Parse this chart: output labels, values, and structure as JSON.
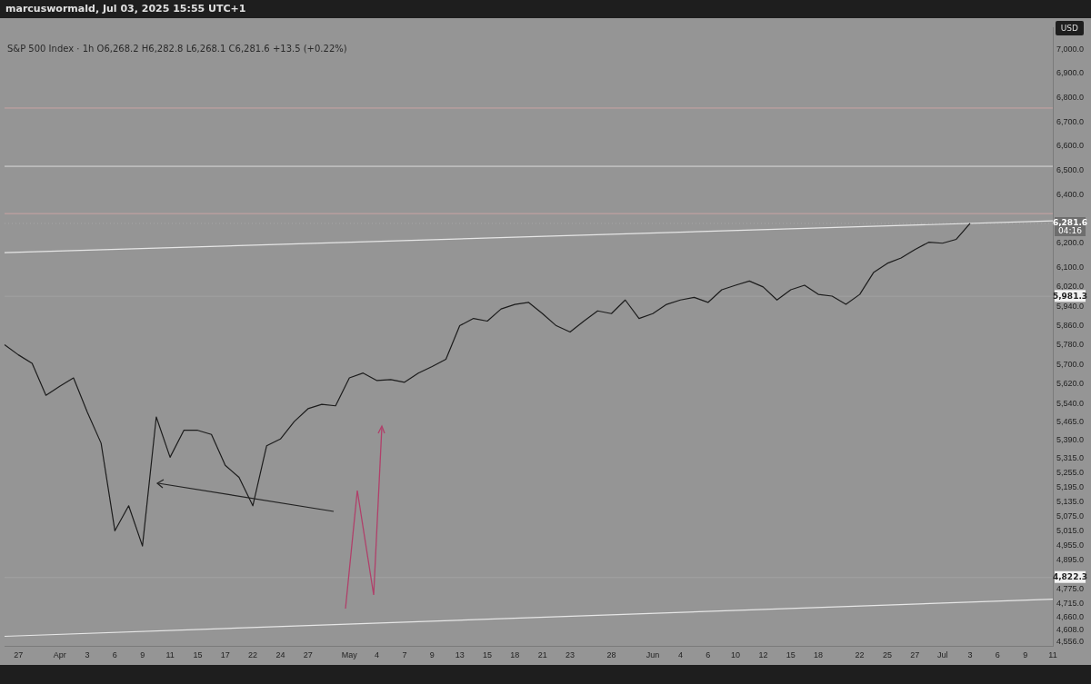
{
  "chart_data": {
    "type": "line",
    "title": "marcuswormald, Jul 03, 2025 15:55 UTC+1",
    "subtitle": "S&P 500 Index · 1h  O6,268.2 H6,282.8 L6,268.1 C6,281.6 +13.5 (+0.22%)",
    "categories": [
      null,
      "27",
      null,
      null,
      "Apr",
      null,
      "3",
      null,
      "6",
      null,
      "9",
      null,
      "11",
      null,
      "15",
      null,
      "17",
      null,
      "22",
      null,
      "24",
      null,
      "27",
      null,
      null,
      "May",
      null,
      "4",
      null,
      "7",
      null,
      "9",
      null,
      "13",
      null,
      "15",
      null,
      "18",
      null,
      "21",
      null,
      "23",
      null,
      null,
      "28",
      null,
      null,
      "Jun",
      null,
      "4",
      null,
      "6",
      null,
      "10",
      null,
      "12",
      null,
      "15",
      null,
      "18",
      null,
      null,
      "22",
      null,
      "25",
      null,
      "27",
      null,
      "Jul",
      null,
      "3",
      null,
      "6",
      null,
      "9",
      null,
      "11"
    ],
    "series": [
      {
        "color": "#1c1c1c",
        "values": [
          5782,
          5740,
          5705,
          5573,
          5610,
          5645,
          5504,
          5376,
          5015,
          5118,
          4952,
          5484,
          5318,
          5429,
          5429,
          5412,
          5285,
          5235,
          5118,
          5365,
          5393,
          5465,
          5518,
          5536,
          5530,
          5645,
          5665,
          5634,
          5638,
          5627,
          5665,
          5692,
          5722,
          5860,
          5890,
          5879,
          5929,
          5948,
          5956,
          5910,
          5860,
          5834,
          5879,
          5921,
          5910,
          5966,
          5890,
          5910,
          5948,
          5966,
          5977,
          5956,
          6008,
          6027,
          6044,
          6020,
          5966,
          6008,
          6027,
          5989,
          5982,
          5948,
          5989,
          6079,
          6117,
          6139,
          6174,
          6204,
          6200,
          6216,
          6281.6,
          null,
          null,
          null,
          null,
          null,
          null
        ]
      },
      {
        "color": "#e6e6e6",
        "values": [
          6161,
          null,
          null,
          null,
          null,
          null,
          null,
          null,
          null,
          null,
          null,
          null,
          null,
          null,
          null,
          null,
          null,
          null,
          null,
          null,
          null,
          null,
          null,
          null,
          null,
          null,
          null,
          null,
          null,
          null,
          null,
          null,
          null,
          null,
          null,
          null,
          null,
          null,
          null,
          null,
          null,
          null,
          null,
          null,
          null,
          null,
          null,
          null,
          null,
          null,
          null,
          null,
          null,
          null,
          null,
          null,
          null,
          null,
          null,
          null,
          null,
          null,
          null,
          null,
          null,
          null,
          null,
          null,
          null,
          null,
          null,
          null,
          null,
          null,
          null,
          null,
          6292
        ]
      },
      {
        "color": "#e6e6e6",
        "values": [
          4580,
          null,
          null,
          null,
          null,
          null,
          null,
          null,
          null,
          null,
          null,
          null,
          null,
          null,
          null,
          null,
          null,
          null,
          null,
          null,
          null,
          null,
          null,
          null,
          null,
          null,
          null,
          null,
          null,
          null,
          null,
          null,
          null,
          null,
          null,
          null,
          null,
          null,
          null,
          null,
          null,
          null,
          null,
          null,
          null,
          null,
          null,
          null,
          null,
          null,
          null,
          null,
          null,
          null,
          null,
          null,
          null,
          null,
          null,
          null,
          null,
          null,
          null,
          null,
          null,
          null,
          null,
          null,
          null,
          null,
          null,
          null,
          null,
          null,
          null,
          null,
          4733
        ]
      }
    ],
    "ylim": [
      4540,
      7090
    ],
    "yticks": [
      {
        "value": 4556,
        "label": "4,556.0"
      },
      {
        "value": 4608,
        "label": "4,608.0"
      },
      {
        "value": 4660,
        "label": "4,660.0"
      },
      {
        "value": 4715,
        "label": "4,715.0"
      },
      {
        "value": 4775,
        "label": "4,775.0"
      },
      {
        "value": 4895,
        "label": "4,895.0"
      },
      {
        "value": 4955,
        "label": "4,955.0"
      },
      {
        "value": 5015,
        "label": "5,015.0"
      },
      {
        "value": 5075,
        "label": "5,075.0"
      },
      {
        "value": 5135,
        "label": "5,135.0"
      },
      {
        "value": 5195,
        "label": "5,195.0"
      },
      {
        "value": 5255,
        "label": "5,255.0"
      },
      {
        "value": 5315,
        "label": "5,315.0"
      },
      {
        "value": 5390,
        "label": "5,390.0"
      },
      {
        "value": 5465,
        "label": "5,465.0"
      },
      {
        "value": 5540,
        "label": "5,540.0"
      },
      {
        "value": 5620,
        "label": "5,620.0"
      },
      {
        "value": 5700,
        "label": "5,700.0"
      },
      {
        "value": 5780,
        "label": "5,780.0"
      },
      {
        "value": 5860,
        "label": "5,860.0"
      },
      {
        "value": 5940,
        "label": "5,940.0"
      },
      {
        "value": 6020,
        "label": "6,020.0"
      },
      {
        "value": 6100,
        "label": "6,100.0"
      },
      {
        "value": 6200,
        "label": "6,200.0"
      },
      {
        "value": 6400,
        "label": "6,400.0"
      },
      {
        "value": 6500,
        "label": "6,500.0"
      },
      {
        "value": 6600,
        "label": "6,600.0"
      },
      {
        "value": 6700,
        "label": "6,700.0"
      },
      {
        "value": 6800,
        "label": "6,800.0"
      },
      {
        "value": 6900,
        "label": "6,900.0"
      },
      {
        "value": 7000,
        "label": "7,000.0"
      }
    ],
    "ref_lines": [
      {
        "axis": "y",
        "value": 6757,
        "color": "#c9a3a3"
      },
      {
        "axis": "y",
        "value": 6517,
        "color": "#d9d9d9"
      },
      {
        "axis": "y",
        "value": 6322,
        "color": "#c9a3a3"
      },
      {
        "axis": "y",
        "value": 6281.6,
        "label": "6,281.6",
        "color": "#a8a8a8",
        "line_style": "dotted"
      },
      {
        "axis": "y",
        "value": 5981.3,
        "label": "5,981.3",
        "color": "#a2a2a2"
      },
      {
        "axis": "y",
        "value": 4822.3,
        "label": "4,822.3",
        "color": "#a2a2a2"
      }
    ],
    "annotations": [
      "USD",
      "04:16"
    ],
    "grid": false,
    "legend": false,
    "marker": "none",
    "line_style": "solid"
  }
}
